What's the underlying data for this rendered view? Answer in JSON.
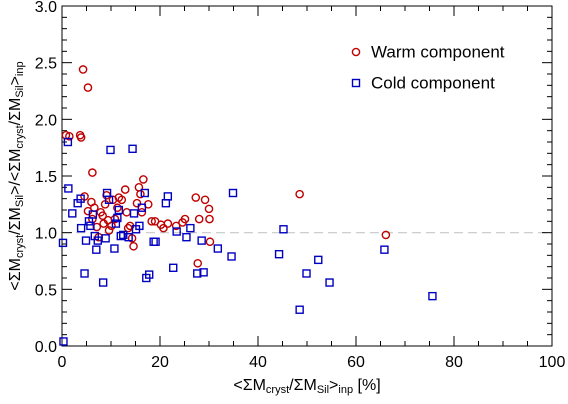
{
  "chart_data": {
    "type": "scatter",
    "xlabel_parts": [
      {
        "t": "<ΣM",
        "s": "n"
      },
      {
        "t": "cryst",
        "s": "sub"
      },
      {
        "t": "/ΣM",
        "s": "n"
      },
      {
        "t": "Sil",
        "s": "sub"
      },
      {
        "t": ">",
        "s": "n"
      },
      {
        "t": "inp",
        "s": "sub"
      },
      {
        "t": " [%]",
        "s": "n"
      }
    ],
    "ylabel_parts": [
      {
        "t": "<ΣM",
        "s": "n"
      },
      {
        "t": "cryst",
        "s": "sub"
      },
      {
        "t": "/ΣM",
        "s": "n"
      },
      {
        "t": "Sil",
        "s": "sub"
      },
      {
        "t": ">/<ΣM",
        "s": "n"
      },
      {
        "t": "cryst",
        "s": "sub"
      },
      {
        "t": "/ΣM",
        "s": "n"
      },
      {
        "t": "Sil",
        "s": "sub"
      },
      {
        "t": ">",
        "s": "n"
      },
      {
        "t": "inp",
        "s": "sub"
      }
    ],
    "xlim": [
      0,
      100
    ],
    "ylim": [
      0.0,
      3.0
    ],
    "x_ticks": [
      0,
      20,
      40,
      60,
      80,
      100
    ],
    "x_tick_labels": [
      "0",
      "20",
      "40",
      "60",
      "80",
      "100"
    ],
    "y_ticks": [
      0.0,
      0.5,
      1.0,
      1.5,
      2.0,
      2.5,
      3.0
    ],
    "y_tick_labels": [
      "0.0",
      "0.5",
      "1.0",
      "1.5",
      "2.0",
      "2.5",
      "3.0"
    ],
    "reference_line": {
      "y": 1.0,
      "style": "dashed",
      "color": "#c8c8c8"
    },
    "grid": false,
    "legend_position": "top-right",
    "series": [
      {
        "name": "Warm component",
        "marker": "circle",
        "color": "#c00000",
        "points": [
          [
            0.8,
            1.86
          ],
          [
            1.5,
            1.85
          ],
          [
            3.7,
            1.86
          ],
          [
            3.9,
            1.84
          ],
          [
            4.3,
            2.44
          ],
          [
            5.3,
            2.28
          ],
          [
            4.6,
            1.32
          ],
          [
            5.3,
            1.19
          ],
          [
            6.2,
            1.53
          ],
          [
            6.0,
            1.27
          ],
          [
            6.2,
            1.12
          ],
          [
            6.6,
            1.22
          ],
          [
            7.1,
            1.05
          ],
          [
            7.5,
            0.96
          ],
          [
            7.9,
            1.18
          ],
          [
            8.3,
            1.15
          ],
          [
            8.5,
            1.08
          ],
          [
            8.8,
            1.25
          ],
          [
            9.1,
            1.33
          ],
          [
            9.4,
            1.11
          ],
          [
            9.6,
            1.02
          ],
          [
            10.1,
            1.06
          ],
          [
            10.4,
            1.29
          ],
          [
            10.8,
            1.12
          ],
          [
            11.3,
            1.22
          ],
          [
            11.6,
            1.31
          ],
          [
            12.2,
            1.29
          ],
          [
            12.9,
            1.38
          ],
          [
            13.2,
            1.18
          ],
          [
            13.5,
            1.04
          ],
          [
            13.9,
            1.06
          ],
          [
            14.3,
            0.95
          ],
          [
            14.6,
            0.88
          ],
          [
            15.3,
            1.26
          ],
          [
            15.7,
            1.4
          ],
          [
            16.0,
            1.34
          ],
          [
            16.3,
            1.18
          ],
          [
            16.6,
            1.47
          ],
          [
            17.6,
            1.25
          ],
          [
            18.3,
            1.1
          ],
          [
            19.0,
            1.1
          ],
          [
            20.2,
            1.07
          ],
          [
            20.7,
            1.04
          ],
          [
            21.6,
            1.08
          ],
          [
            23.3,
            1.06
          ],
          [
            24.6,
            1.09
          ],
          [
            25.1,
            1.12
          ],
          [
            27.3,
            1.31
          ],
          [
            27.7,
            0.73
          ],
          [
            28.0,
            1.12
          ],
          [
            29.2,
            1.29
          ],
          [
            30.0,
            1.21
          ],
          [
            30.1,
            1.12
          ],
          [
            30.2,
            0.92
          ],
          [
            48.5,
            1.34
          ],
          [
            66.1,
            0.98
          ]
        ]
      },
      {
        "name": "Cold component",
        "marker": "square",
        "color": "#0000c0",
        "points": [
          [
            0.2,
            0.91
          ],
          [
            0.3,
            0.04
          ],
          [
            1.2,
            1.8
          ],
          [
            1.3,
            1.39
          ],
          [
            2.1,
            1.17
          ],
          [
            3.2,
            1.26
          ],
          [
            3.8,
            1.3
          ],
          [
            3.9,
            1.04
          ],
          [
            4.6,
            0.64
          ],
          [
            4.9,
            0.93
          ],
          [
            5.5,
            1.1
          ],
          [
            5.8,
            1.06
          ],
          [
            6.3,
            1.16
          ],
          [
            6.7,
            0.97
          ],
          [
            7.0,
            0.85
          ],
          [
            7.3,
            0.93
          ],
          [
            8.4,
            0.56
          ],
          [
            8.9,
            0.95
          ],
          [
            9.2,
            1.35
          ],
          [
            9.6,
            1.29
          ],
          [
            9.9,
            1.73
          ],
          [
            10.7,
            0.86
          ],
          [
            11.0,
            1.08
          ],
          [
            11.3,
            1.13
          ],
          [
            11.6,
            1.2
          ],
          [
            12.0,
            0.97
          ],
          [
            12.5,
            0.98
          ],
          [
            13.6,
            0.96
          ],
          [
            14.4,
            1.74
          ],
          [
            14.7,
            1.17
          ],
          [
            15.1,
            1.03
          ],
          [
            15.8,
            1.06
          ],
          [
            16.3,
            1.22
          ],
          [
            16.9,
            1.35
          ],
          [
            17.2,
            0.6
          ],
          [
            17.8,
            0.63
          ],
          [
            18.7,
            0.92
          ],
          [
            19.1,
            0.92
          ],
          [
            21.2,
            1.26
          ],
          [
            21.6,
            1.32
          ],
          [
            22.7,
            0.69
          ],
          [
            23.4,
            1.01
          ],
          [
            25.4,
            0.96
          ],
          [
            26.2,
            1.04
          ],
          [
            27.6,
            0.64
          ],
          [
            28.5,
            0.93
          ],
          [
            28.9,
            0.65
          ],
          [
            31.8,
            0.86
          ],
          [
            34.6,
            0.79
          ],
          [
            34.9,
            1.35
          ],
          [
            44.3,
            0.81
          ],
          [
            45.2,
            1.03
          ],
          [
            48.5,
            0.32
          ],
          [
            49.9,
            0.64
          ],
          [
            52.3,
            0.76
          ],
          [
            54.6,
            0.56
          ],
          [
            65.8,
            0.85
          ],
          [
            75.6,
            0.44
          ]
        ]
      }
    ]
  }
}
